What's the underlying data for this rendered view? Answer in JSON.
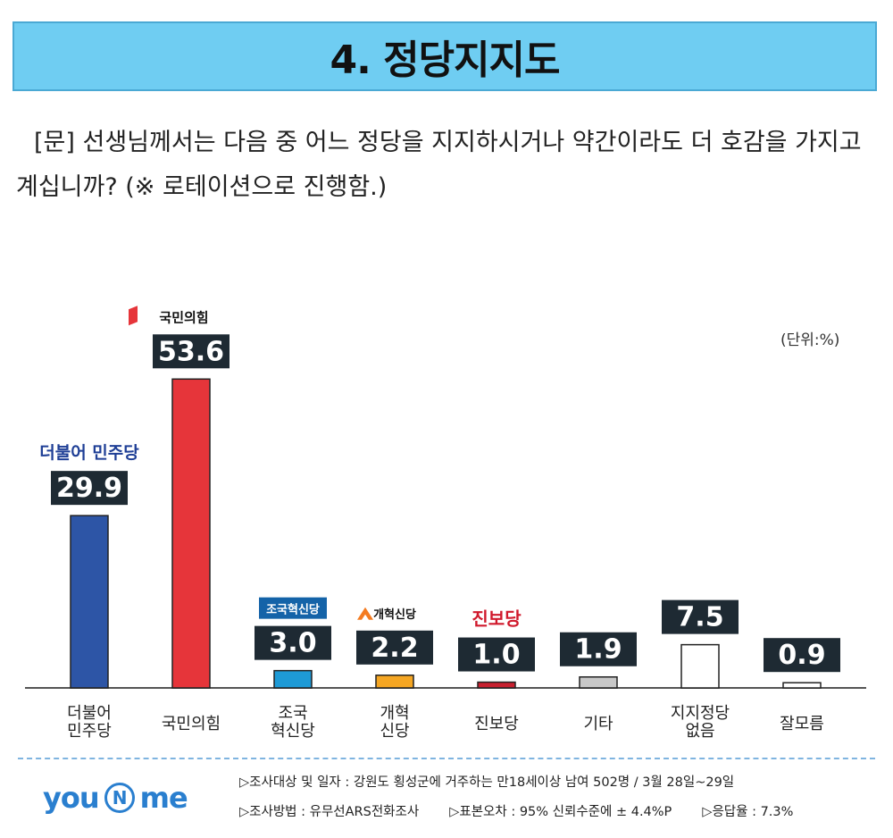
{
  "title": "4. 정당지지도",
  "question": "[문] 선생님께서는 다음 중 어느 정당을 지지하시거나 약간이라도 더 호감을 가지고 계십니까? (※ 로테이션으로 진행함.)",
  "unit": "(단위:%)",
  "chart_data": {
    "type": "bar",
    "title": "정당지지도",
    "ylabel": "%",
    "ylim": [
      0,
      60
    ],
    "categories": [
      "더불어\n민주당",
      "국민의힘",
      "조국\n혁신당",
      "개혁\n신당",
      "진보당",
      "기타",
      "지지정당\n없음",
      "잘모름"
    ],
    "values": [
      29.9,
      53.6,
      3.0,
      2.2,
      1.0,
      1.9,
      7.5,
      0.9
    ],
    "labels": [
      "29.9",
      "53.6",
      "3.0",
      "2.2",
      "1.0",
      "1.9",
      "7.5",
      "0.9"
    ],
    "colors": [
      "#2d55a6",
      "#e6353a",
      "#1e9ad6",
      "#f5a623",
      "#c8202f",
      "#c8c8c8",
      "#ffffff",
      "#ffffff"
    ],
    "party_logos": [
      "더불어 민주당",
      "국민의힘",
      "조국혁신당",
      "개혁신당",
      "진보당",
      "",
      "",
      ""
    ]
  },
  "footer": {
    "line1": "▷조사대상 및 일자 : 강원도 횡성군에 거주하는 만18세이상 남여 502명  /  3월 28일~29일",
    "method": "▷조사방법 : 유무선ARS전화조사",
    "error": "▷표본오차 : 95% 신뢰수준에 ± 4.4%P",
    "response": "▷응답율 : 7.3%"
  },
  "logo": {
    "left": "you",
    "middle": "N",
    "right": "me"
  }
}
